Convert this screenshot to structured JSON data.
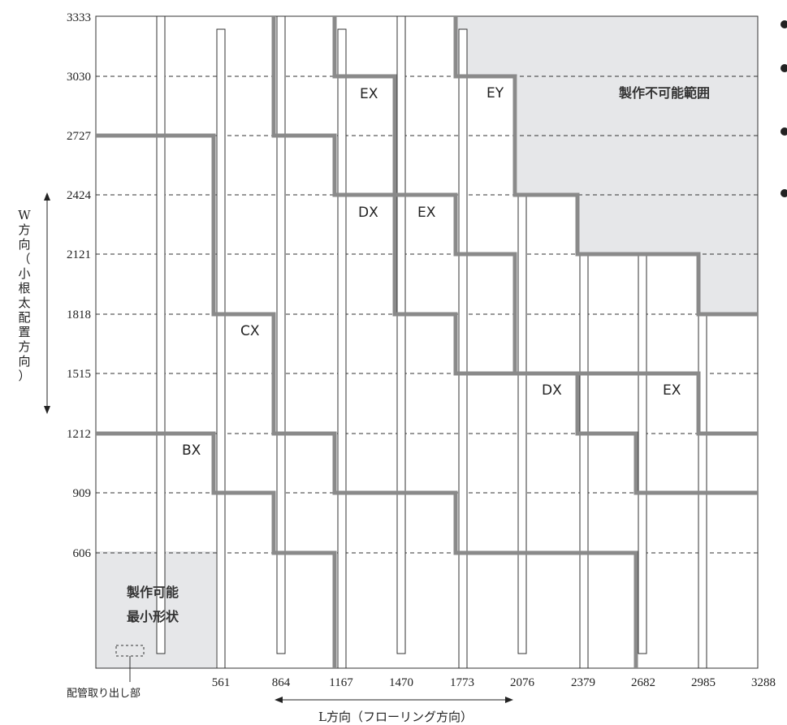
{
  "y_ticks": [
    "3333",
    "3030",
    "2727",
    "2424",
    "2121",
    "1818",
    "1515",
    "1212",
    "909",
    "606"
  ],
  "x_ticks": [
    "561",
    "864",
    "1167",
    "1470",
    "1773",
    "2076",
    "2379",
    "2682",
    "2985",
    "3288"
  ],
  "x_axis_label": "L方向（フローリング方向）",
  "y_axis_label": [
    "W",
    "方",
    "向",
    "（",
    "小",
    "根",
    "太",
    "配",
    "置",
    "方",
    "向",
    "）"
  ],
  "regions": {
    "impossible": "製作不可能範囲",
    "min_shape": [
      "製作可能",
      "最小形状"
    ]
  },
  "pipe_outlet_label": "配管取り出し部",
  "zone_labels": [
    {
      "id": "bx",
      "text": "BX"
    },
    {
      "id": "cx",
      "text": "CX"
    },
    {
      "id": "dx-1",
      "text": "DX"
    },
    {
      "id": "dx-2",
      "text": "DX"
    },
    {
      "id": "ex-1",
      "text": "EX"
    },
    {
      "id": "ex-2",
      "text": "EX"
    },
    {
      "id": "ex-3",
      "text": "EX"
    },
    {
      "id": "ey",
      "text": "EY"
    }
  ],
  "colors": {
    "boundary": "#8a8a8a",
    "shaded_region": "#e6e7e9",
    "bullet": "#222222"
  }
}
